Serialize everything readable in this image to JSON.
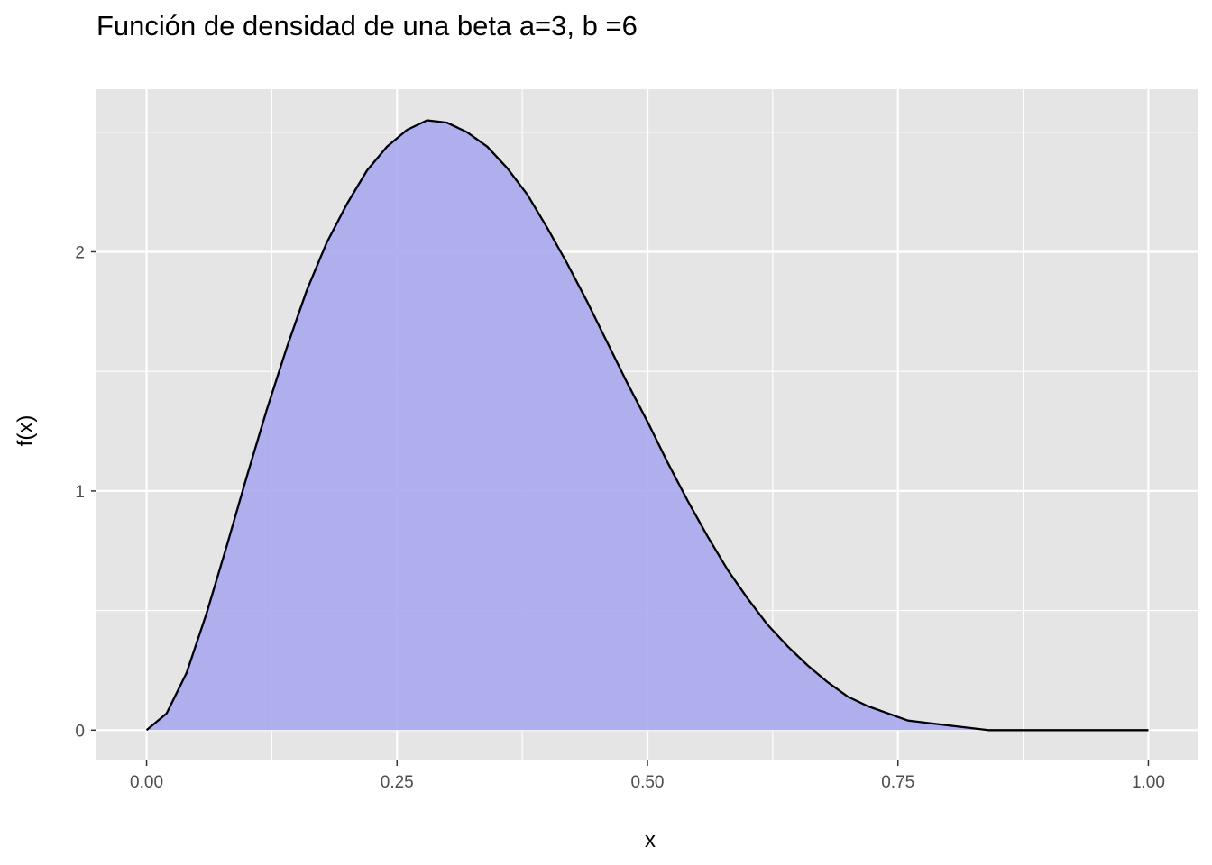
{
  "chart_data": {
    "type": "area",
    "title": "Función de densidad de una beta a=3, b =6",
    "xlabel": "x",
    "ylabel": "f(x)",
    "xlim": [
      -0.05,
      1.05
    ],
    "ylim": [
      -0.127,
      2.68
    ],
    "x_ticks": [
      0,
      0.25,
      0.5,
      0.75,
      1
    ],
    "x_tick_labels": [
      "0.00",
      "0.25",
      "0.50",
      "0.75",
      "1.00"
    ],
    "y_ticks": [
      0,
      1,
      2
    ],
    "y_tick_labels": [
      "0",
      "1",
      "2"
    ],
    "grid": true,
    "legend": "none",
    "series": [
      {
        "x": [
          0,
          0.02,
          0.04,
          0.06,
          0.08,
          0.1,
          0.12,
          0.14,
          0.16,
          0.18,
          0.2,
          0.22,
          0.24,
          0.26,
          0.28,
          0.3,
          0.32,
          0.34,
          0.36,
          0.38,
          0.4,
          0.42,
          0.44,
          0.46,
          0.48,
          0.5,
          0.52,
          0.54,
          0.56,
          0.58,
          0.6,
          0.62,
          0.64,
          0.66,
          0.68,
          0.7,
          0.72,
          0.74,
          0.76,
          0.78,
          0.8,
          0.82,
          0.84,
          0.86,
          0.88,
          0.9,
          0.92,
          0.94,
          0.96,
          0.98,
          1
        ],
        "y": [
          0,
          0.07,
          0.24,
          0.49,
          0.77,
          1.06,
          1.34,
          1.6,
          1.84,
          2.04,
          2.2,
          2.34,
          2.44,
          2.51,
          2.55,
          2.54,
          2.5,
          2.44,
          2.35,
          2.24,
          2.1,
          1.95,
          1.79,
          1.62,
          1.45,
          1.29,
          1.12,
          0.96,
          0.81,
          0.67,
          0.55,
          0.44,
          0.35,
          0.27,
          0.2,
          0.14,
          0.1,
          0.07,
          0.04,
          0.03,
          0.02,
          0.01,
          0,
          0,
          0,
          0,
          0,
          0,
          0,
          0,
          0
        ]
      }
    ],
    "colors": {
      "panel_background": "#e5e5e5",
      "grid": "#ffffff",
      "fill": "#aaaaee",
      "line": "#000000",
      "tick_text": "#4d4d4d",
      "tick_mark": "#333333"
    }
  }
}
